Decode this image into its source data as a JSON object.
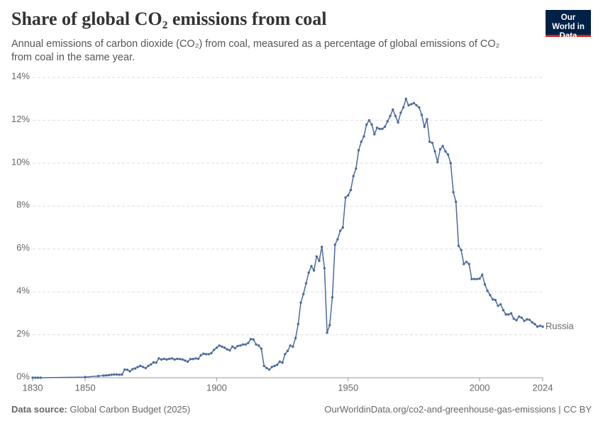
{
  "chart_data": {
    "type": "line",
    "title": "Share of global CO₂ emissions from coal",
    "subtitle": "Annual emissions of carbon dioxide (CO₂) from coal, measured as a percentage of global emissions of CO₂ from coal in the same year.",
    "logo": "Our World in Data",
    "source_label": "Data source:",
    "source": "Global Carbon Budget (2025)",
    "footer_right": "OurWorldinData.org/co2-and-greenhouse-gas-emissions | CC BY",
    "x": [
      1830,
      1831,
      1832,
      1833,
      1850,
      1855,
      1857,
      1858,
      1859,
      1860,
      1861,
      1862,
      1863,
      1864,
      1865,
      1866,
      1867,
      1868,
      1869,
      1870,
      1871,
      1872,
      1873,
      1874,
      1875,
      1876,
      1877,
      1878,
      1879,
      1880,
      1881,
      1882,
      1883,
      1884,
      1885,
      1886,
      1887,
      1888,
      1889,
      1890,
      1891,
      1892,
      1893,
      1894,
      1895,
      1896,
      1897,
      1898,
      1899,
      1900,
      1901,
      1902,
      1903,
      1904,
      1905,
      1906,
      1907,
      1908,
      1909,
      1910,
      1911,
      1912,
      1913,
      1914,
      1915,
      1916,
      1917,
      1918,
      1919,
      1920,
      1921,
      1922,
      1923,
      1924,
      1925,
      1926,
      1927,
      1928,
      1929,
      1930,
      1931,
      1932,
      1933,
      1934,
      1935,
      1936,
      1937,
      1938,
      1939,
      1940,
      1941,
      1942,
      1943,
      1944,
      1945,
      1946,
      1947,
      1948,
      1949,
      1950,
      1951,
      1952,
      1953,
      1954,
      1955,
      1956,
      1957,
      1958,
      1959,
      1960,
      1961,
      1962,
      1963,
      1964,
      1965,
      1966,
      1967,
      1968,
      1969,
      1970,
      1971,
      1972,
      1973,
      1974,
      1975,
      1976,
      1977,
      1978,
      1979,
      1980,
      1981,
      1982,
      1983,
      1984,
      1985,
      1986,
      1987,
      1988,
      1989,
      1990,
      1991,
      1992,
      1993,
      1994,
      1995,
      1996,
      1997,
      1998,
      1999,
      2000,
      2001,
      2002,
      2003,
      2004,
      2005,
      2006,
      2007,
      2008,
      2009,
      2010,
      2011,
      2012,
      2013,
      2014,
      2015,
      2016,
      2017,
      2018,
      2019,
      2020,
      2021,
      2022,
      2023,
      2024
    ],
    "series": [
      {
        "name": "Russia",
        "color": "#4c6a9c",
        "values": [
          0,
          0,
          0,
          0,
          0.03,
          0.08,
          0.1,
          0.11,
          0.12,
          0.14,
          0.15,
          0.15,
          0.14,
          0.15,
          0.38,
          0.37,
          0.3,
          0.4,
          0.43,
          0.5,
          0.55,
          0.5,
          0.45,
          0.55,
          0.62,
          0.72,
          0.7,
          0.9,
          0.85,
          0.88,
          0.85,
          0.88,
          0.9,
          0.85,
          0.88,
          0.87,
          0.85,
          0.8,
          0.75,
          0.87,
          0.87,
          0.9,
          0.88,
          1.05,
          1.12,
          1.1,
          1.1,
          1.15,
          1.3,
          1.4,
          1.5,
          1.45,
          1.4,
          1.32,
          1.28,
          1.45,
          1.38,
          1.48,
          1.5,
          1.55,
          1.55,
          1.62,
          1.8,
          1.78,
          1.55,
          1.5,
          1.35,
          0.55,
          0.45,
          0.38,
          0.5,
          0.55,
          0.6,
          0.75,
          0.7,
          1.1,
          1.25,
          1.5,
          1.45,
          1.85,
          2.5,
          3.5,
          3.9,
          4.4,
          4.9,
          5.2,
          5.0,
          5.65,
          5.45,
          6.1,
          5.1,
          2.1,
          2.45,
          3.75,
          6.2,
          6.45,
          6.85,
          7.0,
          8.4,
          8.5,
          8.75,
          9.4,
          9.75,
          10.6,
          11.0,
          11.25,
          11.8,
          12.0,
          11.8,
          11.35,
          11.65,
          11.6,
          11.6,
          11.7,
          11.95,
          12.2,
          12.5,
          12.2,
          11.9,
          12.35,
          12.6,
          13.0,
          12.7,
          12.75,
          12.8,
          12.7,
          12.6,
          12.25,
          11.7,
          12.05,
          11.0,
          10.95,
          10.55,
          10.05,
          10.65,
          10.8,
          10.55,
          10.4,
          10.0,
          8.65,
          8.2,
          6.15,
          5.95,
          5.3,
          5.4,
          5.3,
          4.6,
          4.6,
          4.6,
          4.62,
          4.8,
          4.35,
          4.05,
          3.85,
          3.65,
          3.62,
          3.35,
          3.42,
          3.15,
          2.95,
          2.95,
          3.0,
          2.75,
          2.68,
          2.85,
          2.8,
          2.65,
          2.72,
          2.7,
          2.58,
          2.5,
          2.38,
          2.42,
          2.38
        ]
      }
    ],
    "xlim": [
      1830,
      2024
    ],
    "xticks": [
      1830,
      1850,
      1900,
      1950,
      2000,
      2024
    ],
    "ylim": [
      0,
      14
    ],
    "yticks": [
      {
        "value": 0,
        "label": "0%"
      },
      {
        "value": 2,
        "label": "2%"
      },
      {
        "value": 4,
        "label": "4%"
      },
      {
        "value": 6,
        "label": "6%"
      },
      {
        "value": 8,
        "label": "8%"
      },
      {
        "value": 10,
        "label": "10%"
      },
      {
        "value": 12,
        "label": "12%"
      },
      {
        "value": 14,
        "label": "14%"
      }
    ],
    "grid": true
  }
}
